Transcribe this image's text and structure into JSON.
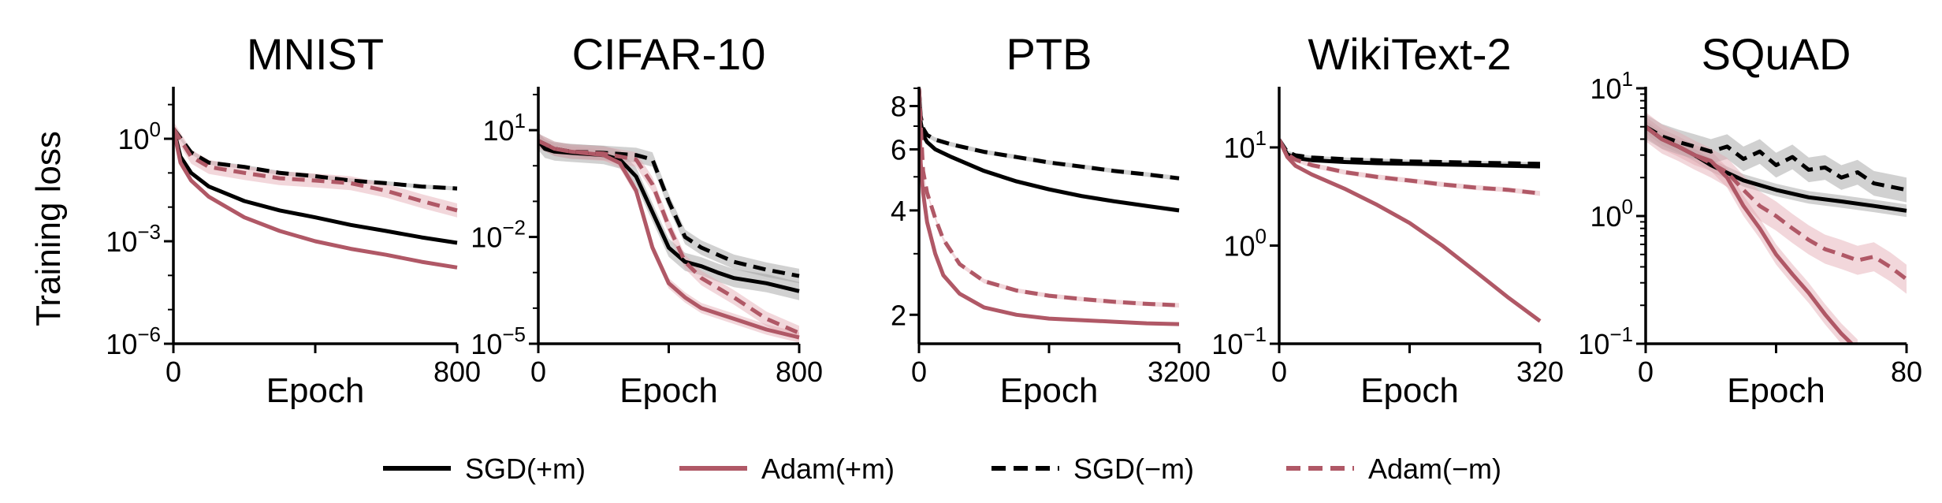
{
  "figure": {
    "ylabel": "Training loss",
    "legend_placement": "bottom-center"
  },
  "legend": [
    {
      "name": "SGD(+m)",
      "color": "#000000",
      "dash": "solid"
    },
    {
      "name": "Adam(+m)",
      "color": "#b05866",
      "dash": "solid"
    },
    {
      "name": "SGD(−m)",
      "color": "#000000",
      "dash": "dashed"
    },
    {
      "name": "Adam(−m)",
      "color": "#b05866",
      "dash": "dashed"
    }
  ],
  "chart_data": [
    {
      "type": "line",
      "title": "MNIST",
      "xlabel": "Epoch",
      "xlim": [
        0,
        800
      ],
      "xticks": [
        {
          "v": 0,
          "label": "0"
        },
        {
          "v": 800,
          "label": "800"
        }
      ],
      "yscale": "log",
      "ylim": [
        1e-06,
        30
      ],
      "yticks": [
        {
          "v": 1,
          "base": "10",
          "exp": "0"
        },
        {
          "v": 0.001,
          "base": "10",
          "exp": "−3"
        },
        {
          "v": 1e-06,
          "base": "10",
          "exp": "−6"
        }
      ],
      "series": [
        {
          "name": "SGD(+m)",
          "x": [
            0,
            20,
            50,
            100,
            200,
            300,
            400,
            500,
            600,
            700,
            800
          ],
          "y": [
            2,
            0.3,
            0.1,
            0.04,
            0.015,
            0.008,
            0.005,
            0.003,
            0.002,
            0.0013,
            0.0009
          ],
          "band": 0.1
        },
        {
          "name": "Adam(+m)",
          "x": [
            0,
            20,
            50,
            100,
            200,
            300,
            400,
            500,
            600,
            700,
            800
          ],
          "y": [
            2,
            0.2,
            0.06,
            0.02,
            0.005,
            0.002,
            0.001,
            0.0006,
            0.0004,
            0.00025,
            0.00017
          ],
          "band": 0.1
        },
        {
          "name": "SGD(−m)",
          "x": [
            0,
            50,
            100,
            200,
            300,
            400,
            500,
            600,
            700,
            800
          ],
          "y": [
            2,
            0.4,
            0.2,
            0.15,
            0.1,
            0.08,
            0.06,
            0.05,
            0.04,
            0.035
          ],
          "band": 0.15
        },
        {
          "name": "Adam(−m)",
          "x": [
            0,
            50,
            100,
            200,
            300,
            400,
            500,
            600,
            700,
            800
          ],
          "y": [
            2,
            0.3,
            0.15,
            0.1,
            0.07,
            0.06,
            0.05,
            0.03,
            0.015,
            0.008
          ],
          "band": 0.6
        }
      ]
    },
    {
      "type": "line",
      "title": "CIFAR-10",
      "xlabel": "Epoch",
      "xlim": [
        0,
        800
      ],
      "xticks": [
        {
          "v": 0,
          "label": "0"
        },
        {
          "v": 800,
          "label": "800"
        }
      ],
      "yscale": "log",
      "ylim": [
        1e-05,
        150
      ],
      "yticks": [
        {
          "v": 10,
          "base": "10",
          "exp": "1"
        },
        {
          "v": 0.01,
          "base": "10",
          "exp": "−2"
        },
        {
          "v": 1e-05,
          "base": "10",
          "exp": "−5"
        }
      ],
      "series": [
        {
          "name": "SGD(+m)",
          "x": [
            0,
            20,
            50,
            100,
            200,
            250,
            300,
            350,
            400,
            450,
            500,
            550,
            600,
            700,
            800
          ],
          "y": [
            5,
            3,
            2.5,
            2.3,
            2,
            1.5,
            0.5,
            0.05,
            0.005,
            0.002,
            0.0015,
            0.001,
            0.0007,
            0.0005,
            0.0003
          ],
          "band": 0.8
        },
        {
          "name": "Adam(+m)",
          "x": [
            0,
            50,
            100,
            200,
            250,
            300,
            350,
            400,
            450,
            500,
            600,
            700,
            800
          ],
          "y": [
            5,
            3,
            2.5,
            2,
            1.2,
            0.2,
            0.005,
            0.0005,
            0.0002,
            0.0001,
            5e-05,
            2.5e-05,
            1.5e-05
          ],
          "band": 0.4
        },
        {
          "name": "SGD(−m)",
          "x": [
            0,
            50,
            100,
            200,
            300,
            350,
            400,
            450,
            500,
            600,
            700,
            800
          ],
          "y": [
            5,
            3,
            2.5,
            2.3,
            2,
            1.5,
            0.1,
            0.01,
            0.005,
            0.002,
            0.0012,
            0.0008
          ],
          "band": 0.6
        },
        {
          "name": "Adam(−m)",
          "x": [
            0,
            50,
            100,
            200,
            300,
            350,
            400,
            450,
            500,
            600,
            700,
            800
          ],
          "y": [
            5,
            3,
            2.5,
            2.2,
            1.5,
            0.3,
            0.02,
            0.002,
            0.0007,
            0.0002,
            5e-05,
            2e-05
          ],
          "band": 0.6
        }
      ]
    },
    {
      "type": "line",
      "title": "PTB",
      "xlabel": "Epoch",
      "xlim": [
        0,
        3200
      ],
      "xticks": [
        {
          "v": 0,
          "label": "0"
        },
        {
          "v": 3200,
          "label": "3200"
        }
      ],
      "yscale": "log",
      "ylim": [
        1.65,
        9
      ],
      "yticks": [
        {
          "v": 8,
          "label": "8"
        },
        {
          "v": 6,
          "label": "6"
        },
        {
          "v": 4,
          "label": "4"
        },
        {
          "v": 2,
          "label": "2"
        }
      ],
      "series": [
        {
          "name": "SGD(+m)",
          "x": [
            0,
            20,
            50,
            100,
            200,
            400,
            800,
            1200,
            1600,
            2000,
            2400,
            2800,
            3200
          ],
          "y": [
            9,
            7.2,
            6.6,
            6.3,
            6,
            5.7,
            5.2,
            4.85,
            4.6,
            4.4,
            4.25,
            4.12,
            4
          ],
          "band": 0.015
        },
        {
          "name": "Adam(+m)",
          "x": [
            0,
            20,
            50,
            100,
            200,
            300,
            500,
            800,
            1200,
            1600,
            2000,
            2400,
            2800,
            3200
          ],
          "y": [
            9,
            5.5,
            4.5,
            3.7,
            3,
            2.6,
            2.3,
            2.1,
            2.0,
            1.95,
            1.93,
            1.91,
            1.89,
            1.88
          ],
          "band": 0.01
        },
        {
          "name": "SGD(−m)",
          "x": [
            0,
            20,
            50,
            100,
            200,
            400,
            800,
            1200,
            1600,
            2000,
            2400,
            2800,
            3200
          ],
          "y": [
            9,
            7.5,
            6.9,
            6.6,
            6.4,
            6.2,
            5.9,
            5.7,
            5.5,
            5.35,
            5.2,
            5.08,
            4.95
          ],
          "band": 0.015
        },
        {
          "name": "Adam(−m)",
          "x": [
            0,
            50,
            100,
            200,
            300,
            500,
            800,
            1200,
            1600,
            2000,
            2400,
            2800,
            3200
          ],
          "y": [
            9,
            5.2,
            4.5,
            3.8,
            3.3,
            2.8,
            2.5,
            2.35,
            2.27,
            2.22,
            2.18,
            2.15,
            2.13
          ],
          "band": 0.015
        }
      ]
    },
    {
      "type": "line",
      "title": "WikiText-2",
      "xlabel": "Epoch",
      "xlim": [
        0,
        320
      ],
      "xticks": [
        {
          "v": 0,
          "label": "0"
        },
        {
          "v": 320,
          "label": "320"
        }
      ],
      "yscale": "log",
      "ylim": [
        0.1,
        40
      ],
      "yticks": [
        {
          "v": 10,
          "base": "10",
          "exp": "1"
        },
        {
          "v": 1,
          "base": "10",
          "exp": "0"
        },
        {
          "v": 0.1,
          "base": "10",
          "exp": "−1"
        }
      ],
      "series": [
        {
          "name": "SGD(+m)",
          "x": [
            0,
            10,
            20,
            40,
            80,
            120,
            160,
            200,
            240,
            280,
            320
          ],
          "y": [
            12,
            8.5,
            7.8,
            7.4,
            7.1,
            6.9,
            6.8,
            6.7,
            6.6,
            6.5,
            6.4
          ],
          "band": 0.04
        },
        {
          "name": "Adam(+m)",
          "x": [
            0,
            10,
            20,
            40,
            80,
            120,
            160,
            200,
            240,
            280,
            320
          ],
          "y": [
            12,
            8,
            6.5,
            5.3,
            3.8,
            2.6,
            1.7,
            1,
            0.55,
            0.3,
            0.17
          ],
          "band": 0.04
        },
        {
          "name": "SGD(−m)",
          "x": [
            0,
            10,
            20,
            40,
            80,
            120,
            160,
            200,
            240,
            280,
            320
          ],
          "y": [
            12,
            9,
            8.3,
            7.9,
            7.6,
            7.4,
            7.2,
            7.1,
            7.0,
            6.9,
            6.8
          ],
          "band": 0.04
        },
        {
          "name": "Adam(−m)",
          "x": [
            0,
            10,
            20,
            40,
            80,
            120,
            160,
            200,
            240,
            280,
            320
          ],
          "y": [
            12,
            8.5,
            7.5,
            6.6,
            5.6,
            5,
            4.6,
            4.2,
            3.9,
            3.7,
            3.4
          ],
          "band": 0.06
        }
      ]
    },
    {
      "type": "line",
      "title": "SQuAD",
      "xlabel": "Epoch",
      "xlim": [
        0,
        80
      ],
      "xticks": [
        {
          "v": 0,
          "label": "0"
        },
        {
          "v": 80,
          "label": "80"
        }
      ],
      "yscale": "log",
      "ylim": [
        0.1,
        10
      ],
      "yticks": [
        {
          "v": 10,
          "base": "10",
          "exp": "1"
        },
        {
          "v": 1,
          "base": "10",
          "exp": "0"
        },
        {
          "v": 0.1,
          "base": "10",
          "exp": "−1"
        }
      ],
      "series": [
        {
          "name": "SGD(+m)",
          "x": [
            0,
            5,
            10,
            15,
            20,
            30,
            40,
            50,
            60,
            70,
            80
          ],
          "y": [
            5,
            4,
            3.5,
            3,
            2.5,
            1.9,
            1.6,
            1.4,
            1.3,
            1.2,
            1.1
          ],
          "band": 0.12
        },
        {
          "name": "Adam(+m)",
          "x": [
            0,
            5,
            10,
            15,
            20,
            25,
            30,
            35,
            40,
            45,
            50,
            55,
            60,
            65
          ],
          "y": [
            5,
            4,
            3.5,
            3,
            2.7,
            2,
            1.2,
            0.8,
            0.5,
            0.35,
            0.25,
            0.17,
            0.12,
            0.09
          ],
          "band": 0.2
        },
        {
          "name": "SGD(−m)",
          "x": [
            0,
            5,
            10,
            15,
            20,
            25,
            30,
            35,
            40,
            45,
            50,
            55,
            60,
            65,
            70,
            75,
            80
          ],
          "y": [
            5,
            4.2,
            3.8,
            3.5,
            3.2,
            3.5,
            2.8,
            3.2,
            2.5,
            2.9,
            2.3,
            2.4,
            2,
            2.2,
            1.8,
            1.7,
            1.6
          ],
          "band": 0.25
        },
        {
          "name": "Adam(−m)",
          "x": [
            0,
            5,
            10,
            15,
            20,
            25,
            30,
            35,
            40,
            45,
            50,
            55,
            60,
            65,
            70,
            75,
            80
          ],
          "y": [
            5,
            4,
            3.5,
            3,
            2.6,
            2.2,
            1.6,
            1.2,
            1.0,
            0.8,
            0.65,
            0.55,
            0.5,
            0.45,
            0.48,
            0.4,
            0.32
          ],
          "band": 0.3
        }
      ]
    }
  ]
}
